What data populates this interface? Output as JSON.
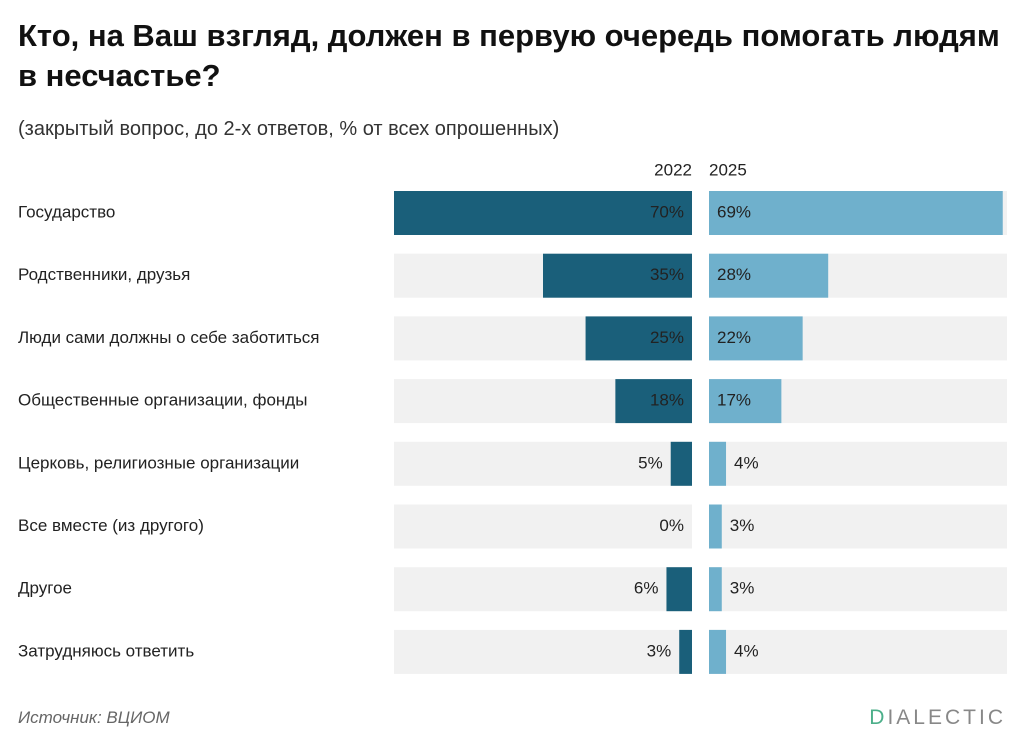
{
  "chart_data": {
    "type": "butterfly-bar",
    "title": "Кто, на Ваш взгляд, должен в первую очередь помогать людям в несчастье?",
    "subtitle": "(закрытый вопрос, до 2-х ответов, % от всех опрошенных)",
    "categories": [
      "Государство",
      "Родственники, друзья",
      "Люди сами должны о себе заботиться",
      "Общественные организации, фонды",
      "Церковь, религиозные организации",
      "Все вместе (из другого)",
      "Другое",
      "Затрудняюсь ответить"
    ],
    "series": [
      {
        "name": "2022",
        "color": "#1a5f7a",
        "values": [
          70,
          35,
          25,
          18,
          5,
          0,
          6,
          3
        ],
        "value_labels": [
          "70%",
          "35%",
          "25%",
          "18%",
          "5%",
          "0%",
          "6%",
          "3%"
        ]
      },
      {
        "name": "2025",
        "color": "#6fb0cc",
        "values": [
          69,
          28,
          22,
          17,
          4,
          3,
          3,
          4
        ],
        "value_labels": [
          "69%",
          "28%",
          "22%",
          "17%",
          "4%",
          "3%",
          "3%",
          "4%"
        ]
      }
    ],
    "xlim": [
      0,
      70
    ],
    "source": "Источник: ВЦИОМ",
    "logo": "DIALECTIC"
  }
}
